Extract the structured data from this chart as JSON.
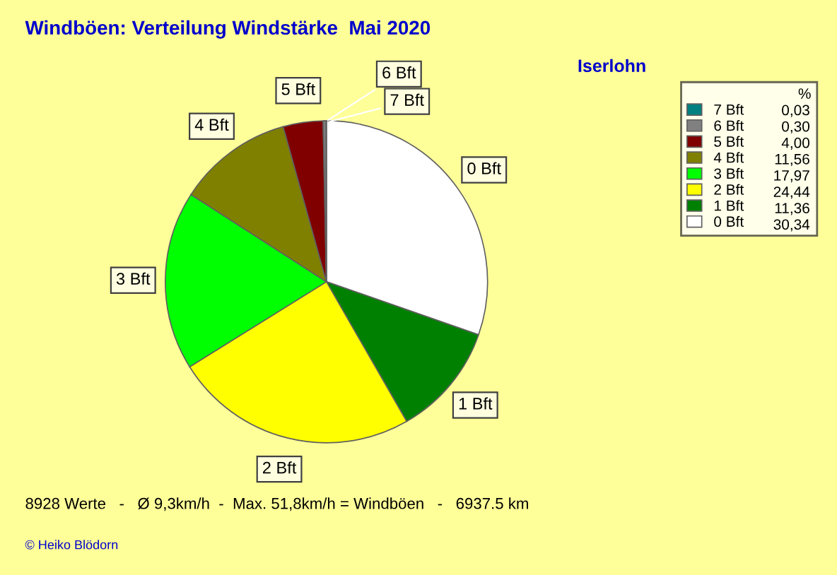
{
  "chart_data": {
    "type": "pie",
    "title": "Windböen: Verteilung Windstärke  Mai 2020",
    "subtitle": "Iserlohn",
    "legend_title": "%",
    "legend": "top right",
    "categories": [
      "0 Bft",
      "1 Bft",
      "2 Bft",
      "3 Bft",
      "4 Bft",
      "5 Bft",
      "6 Bft",
      "7 Bft"
    ],
    "values": [
      30.34,
      11.36,
      24.44,
      17.97,
      11.56,
      4.0,
      0.3,
      0.03
    ],
    "value_labels": [
      "30,34",
      "11,36",
      "24,44",
      "17,97",
      "11,56",
      "4,00",
      "0,30",
      "0,03"
    ],
    "colors": [
      "#ffffff",
      "#008000",
      "#ffff00",
      "#00ff00",
      "#808000",
      "#800000",
      "#808080",
      "#008080"
    ],
    "annotations": [
      "8928 Werte   -   Ø 9,3km/h  -  Max. 51,8km/h = Windböen   -   6937.5 km",
      "© Heiko Blödorn"
    ]
  }
}
